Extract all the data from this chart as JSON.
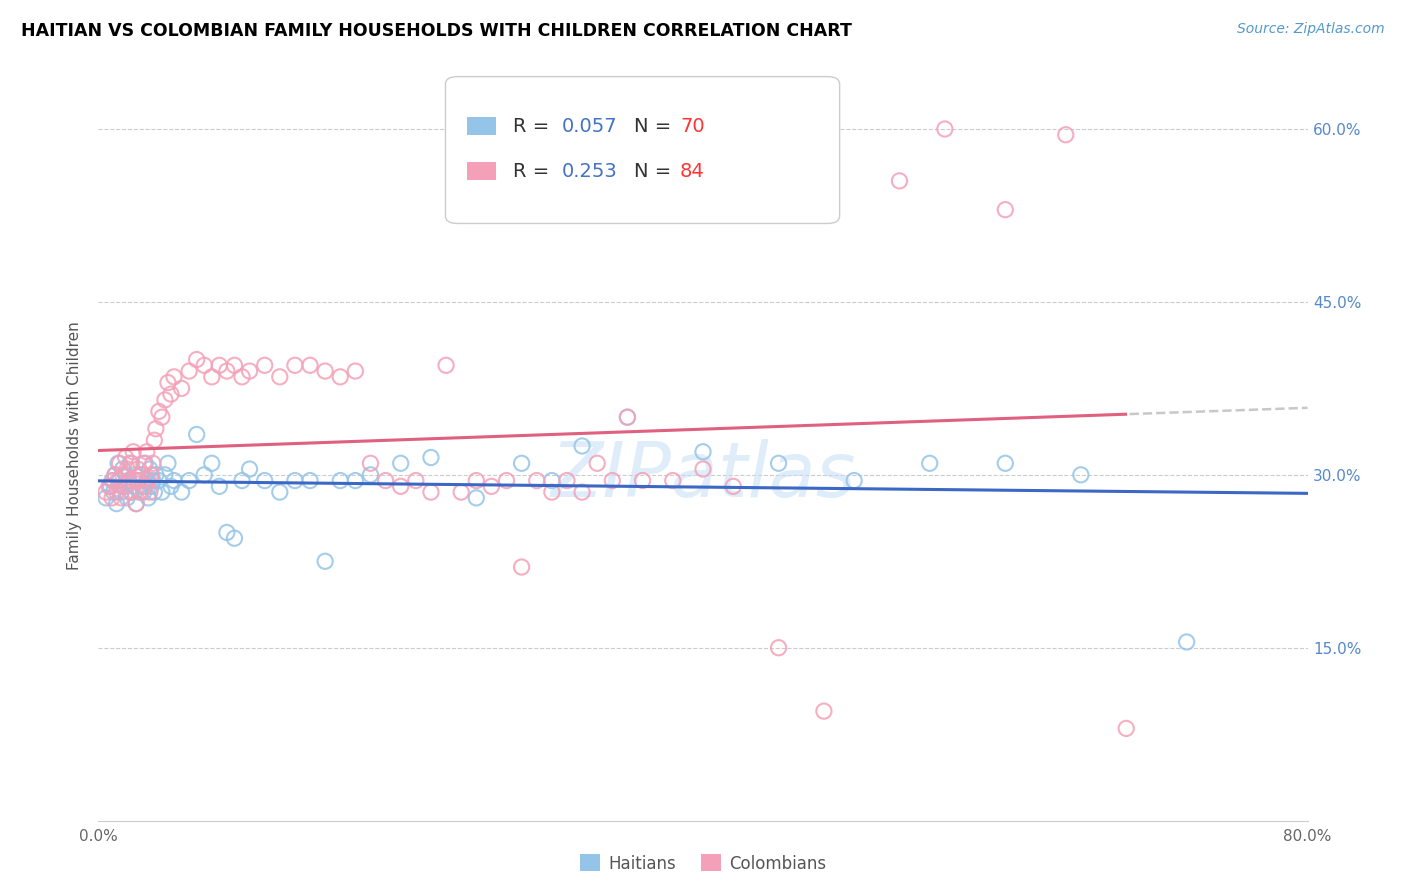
{
  "title": "HAITIAN VS COLOMBIAN FAMILY HOUSEHOLDS WITH CHILDREN CORRELATION CHART",
  "source": "Source: ZipAtlas.com",
  "ylabel": "Family Households with Children",
  "x_min": 0.0,
  "x_max": 0.8,
  "y_min": 0.0,
  "y_max": 0.65,
  "x_ticks": [
    0.0,
    0.1,
    0.2,
    0.3,
    0.4,
    0.5,
    0.6,
    0.7,
    0.8
  ],
  "y_ticks": [
    0.0,
    0.15,
    0.3,
    0.45,
    0.6
  ],
  "y_tick_labels": [
    "",
    "15.0%",
    "30.0%",
    "45.0%",
    "60.0%"
  ],
  "haitian_color": "#94C4E8",
  "colombian_color": "#F4A0B8",
  "haitian_line_color": "#3A68C4",
  "colombian_line_color": "#E06080",
  "colombian_dashed_color": "#C8C8C8",
  "watermark": "ZIPatlas",
  "haitian_x": [
    0.005,
    0.008,
    0.009,
    0.01,
    0.011,
    0.012,
    0.013,
    0.014,
    0.015,
    0.016,
    0.017,
    0.018,
    0.019,
    0.02,
    0.021,
    0.022,
    0.023,
    0.024,
    0.025,
    0.026,
    0.027,
    0.028,
    0.029,
    0.03,
    0.031,
    0.032,
    0.033,
    0.034,
    0.035,
    0.036,
    0.037,
    0.038,
    0.04,
    0.042,
    0.044,
    0.046,
    0.048,
    0.05,
    0.055,
    0.06,
    0.065,
    0.07,
    0.075,
    0.08,
    0.085,
    0.09,
    0.095,
    0.1,
    0.11,
    0.12,
    0.13,
    0.14,
    0.15,
    0.16,
    0.17,
    0.18,
    0.2,
    0.22,
    0.25,
    0.28,
    0.3,
    0.32,
    0.35,
    0.4,
    0.45,
    0.5,
    0.55,
    0.6,
    0.65,
    0.72
  ],
  "haitian_y": [
    0.28,
    0.29,
    0.295,
    0.285,
    0.3,
    0.275,
    0.31,
    0.295,
    0.285,
    0.305,
    0.29,
    0.3,
    0.28,
    0.295,
    0.31,
    0.285,
    0.29,
    0.3,
    0.275,
    0.295,
    0.285,
    0.3,
    0.29,
    0.285,
    0.31,
    0.295,
    0.28,
    0.305,
    0.29,
    0.295,
    0.285,
    0.3,
    0.295,
    0.285,
    0.3,
    0.31,
    0.29,
    0.295,
    0.285,
    0.295,
    0.335,
    0.3,
    0.31,
    0.29,
    0.25,
    0.245,
    0.295,
    0.305,
    0.295,
    0.285,
    0.295,
    0.295,
    0.225,
    0.295,
    0.295,
    0.3,
    0.31,
    0.315,
    0.28,
    0.31,
    0.295,
    0.325,
    0.35,
    0.32,
    0.31,
    0.295,
    0.31,
    0.31,
    0.3,
    0.155
  ],
  "colombian_x": [
    0.005,
    0.007,
    0.009,
    0.01,
    0.011,
    0.012,
    0.013,
    0.014,
    0.015,
    0.016,
    0.017,
    0.018,
    0.019,
    0.02,
    0.021,
    0.022,
    0.023,
    0.024,
    0.025,
    0.026,
    0.027,
    0.028,
    0.029,
    0.03,
    0.031,
    0.032,
    0.033,
    0.034,
    0.035,
    0.036,
    0.037,
    0.038,
    0.04,
    0.042,
    0.044,
    0.046,
    0.048,
    0.05,
    0.055,
    0.06,
    0.065,
    0.07,
    0.075,
    0.08,
    0.085,
    0.09,
    0.095,
    0.1,
    0.11,
    0.12,
    0.13,
    0.14,
    0.15,
    0.16,
    0.17,
    0.18,
    0.19,
    0.2,
    0.21,
    0.22,
    0.23,
    0.24,
    0.25,
    0.26,
    0.27,
    0.28,
    0.29,
    0.3,
    0.31,
    0.32,
    0.33,
    0.34,
    0.35,
    0.36,
    0.38,
    0.4,
    0.42,
    0.45,
    0.48,
    0.53,
    0.56,
    0.6,
    0.64,
    0.68
  ],
  "colombian_y": [
    0.285,
    0.29,
    0.28,
    0.295,
    0.3,
    0.285,
    0.295,
    0.31,
    0.28,
    0.3,
    0.29,
    0.315,
    0.305,
    0.295,
    0.285,
    0.31,
    0.32,
    0.295,
    0.275,
    0.305,
    0.295,
    0.285,
    0.3,
    0.31,
    0.29,
    0.32,
    0.295,
    0.285,
    0.3,
    0.31,
    0.33,
    0.34,
    0.355,
    0.35,
    0.365,
    0.38,
    0.37,
    0.385,
    0.375,
    0.39,
    0.4,
    0.395,
    0.385,
    0.395,
    0.39,
    0.395,
    0.385,
    0.39,
    0.395,
    0.385,
    0.395,
    0.395,
    0.39,
    0.385,
    0.39,
    0.31,
    0.295,
    0.29,
    0.295,
    0.285,
    0.395,
    0.285,
    0.295,
    0.29,
    0.295,
    0.22,
    0.295,
    0.285,
    0.295,
    0.285,
    0.31,
    0.295,
    0.35,
    0.295,
    0.295,
    0.305,
    0.29,
    0.15,
    0.095,
    0.555,
    0.6,
    0.53,
    0.595,
    0.08
  ]
}
